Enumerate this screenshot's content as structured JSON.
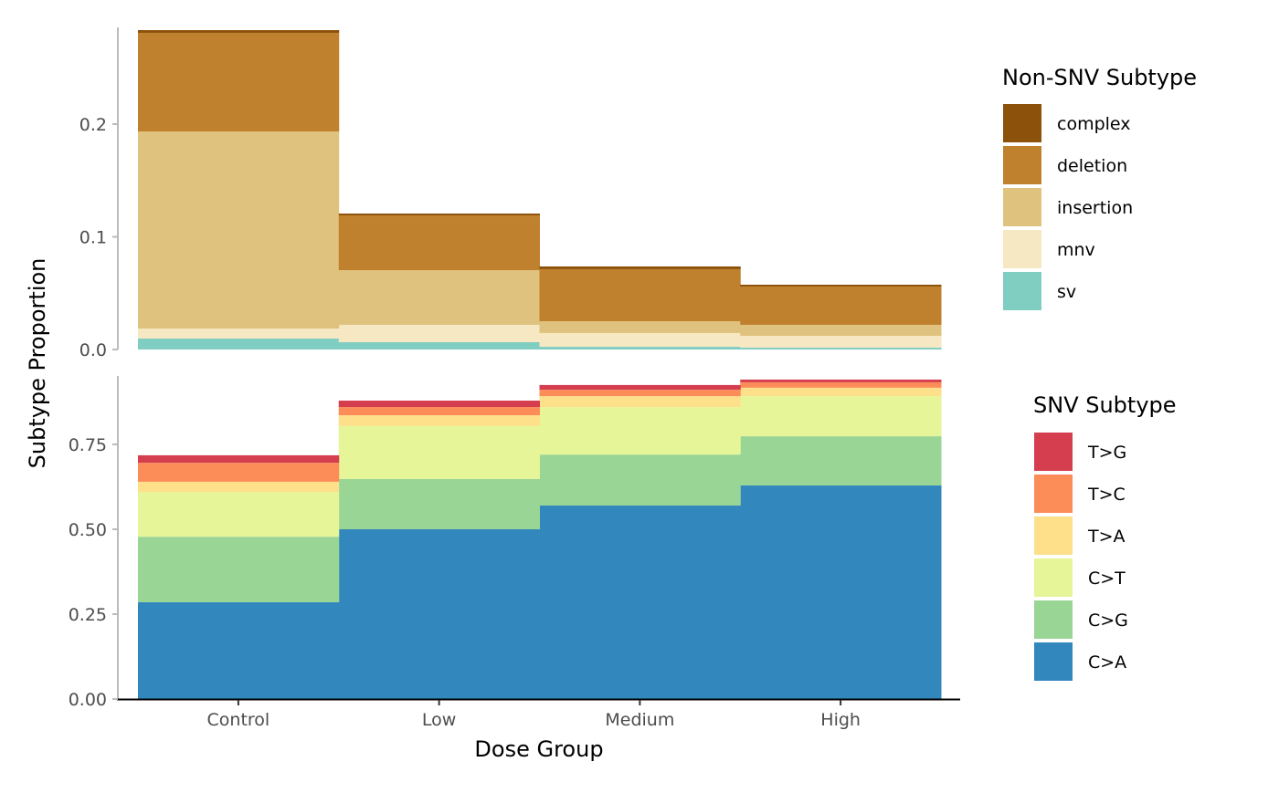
{
  "chart_data": [
    {
      "type": "bar",
      "stacked": true,
      "panel": "top",
      "categories": [
        "Control",
        "Low",
        "Medium",
        "High"
      ],
      "ylim": [
        0,
        0.28
      ],
      "yticks": [
        "0.0",
        "0.1",
        "0.2"
      ],
      "ytick_values": [
        0,
        0.1,
        0.2
      ],
      "legend_title": "Non-SNV Subtype",
      "legend_position": "right",
      "series": [
        {
          "name": "sv",
          "color": "#80CDC1",
          "values": [
            0.0097,
            0.0065,
            0.0024,
            0.0016
          ]
        },
        {
          "name": "mnv",
          "color": "#F6E8C3",
          "values": [
            0.0089,
            0.0154,
            0.0122,
            0.0105
          ]
        },
        {
          "name": "insertion",
          "color": "#DFC27D",
          "values": [
            0.1749,
            0.0485,
            0.0105,
            0.0098
          ]
        },
        {
          "name": "deletion",
          "color": "#BF812D",
          "values": [
            0.0875,
            0.0486,
            0.0462,
            0.034
          ]
        },
        {
          "name": "complex",
          "color": "#8C510A",
          "values": [
            0.0024,
            0.0016,
            0.0024,
            0.0016
          ]
        }
      ]
    },
    {
      "type": "bar",
      "stacked": true,
      "panel": "bottom",
      "categories": [
        "Control",
        "Low",
        "Medium",
        "High"
      ],
      "ylim": [
        0,
        0.95
      ],
      "yticks": [
        "0.00",
        "0.25",
        "0.50",
        "0.75"
      ],
      "ytick_values": [
        0,
        0.25,
        0.5,
        0.75
      ],
      "legend_title": "SNV Subtype",
      "legend_position": "right",
      "series": [
        {
          "name": "C>A",
          "color": "#3288BD",
          "values": [
            0.285,
            0.5,
            0.57,
            0.629
          ]
        },
        {
          "name": "C>G",
          "color": "#99D594",
          "values": [
            0.193,
            0.148,
            0.15,
            0.145
          ]
        },
        {
          "name": "C>T",
          "color": "#E6F598",
          "values": [
            0.132,
            0.156,
            0.14,
            0.118
          ]
        },
        {
          "name": "T>A",
          "color": "#FEE08B",
          "values": [
            0.03,
            0.032,
            0.032,
            0.025
          ]
        },
        {
          "name": "T>C",
          "color": "#FC8D59",
          "values": [
            0.056,
            0.024,
            0.019,
            0.016
          ]
        },
        {
          "name": "T>G",
          "color": "#D53E4F",
          "values": [
            0.022,
            0.019,
            0.014,
            0.008
          ]
        }
      ]
    }
  ],
  "xlabel": "Dose Group",
  "ylabel": "Subtype Proportion"
}
